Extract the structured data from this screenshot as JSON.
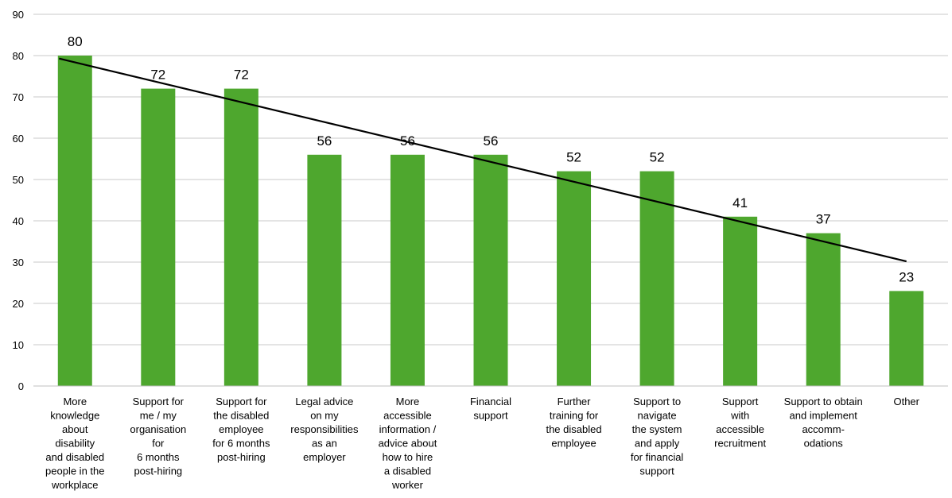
{
  "chart_data": {
    "type": "bar",
    "title": "",
    "xlabel": "",
    "ylabel": "",
    "ylim": [
      0,
      90
    ],
    "yticks": [
      0,
      10,
      20,
      30,
      40,
      50,
      60,
      70,
      80,
      90
    ],
    "grid": true,
    "legend": "none",
    "bar_color": "#4ea72e",
    "trendline": {
      "type": "linear",
      "color": "#000000"
    },
    "categories": [
      [
        "More",
        "knowledge",
        "about",
        "disability",
        "and disabled",
        "people in the",
        "workplace"
      ],
      [
        "Support for",
        "me / my",
        "organisation",
        "for",
        "6 months",
        "post-hiring"
      ],
      [
        "Support for",
        "the disabled",
        "employee",
        "for 6 months",
        "post-hiring"
      ],
      [
        "Legal advice",
        "on my",
        "responsibilities",
        "as an",
        "employer"
      ],
      [
        "More",
        "accessible",
        "information /",
        "advice about",
        "how to hire",
        "a disabled",
        "worker"
      ],
      [
        "Financial",
        "support"
      ],
      [
        "Further",
        "training for",
        "the disabled",
        "employee"
      ],
      [
        "Support to",
        "navigate",
        "the system",
        "and apply",
        "for financial",
        "support"
      ],
      [
        "Support",
        "with",
        "accessible",
        "recruitment"
      ],
      [
        "Support to obtain",
        "and implement",
        "accomm-",
        "odations"
      ],
      [
        "Other"
      ]
    ],
    "values": [
      80,
      72,
      72,
      56,
      56,
      56,
      52,
      52,
      41,
      37,
      23
    ],
    "data_labels": [
      "80",
      "72",
      "72",
      "56",
      "56",
      "56",
      "52",
      "52",
      "41",
      "37",
      "23"
    ]
  }
}
